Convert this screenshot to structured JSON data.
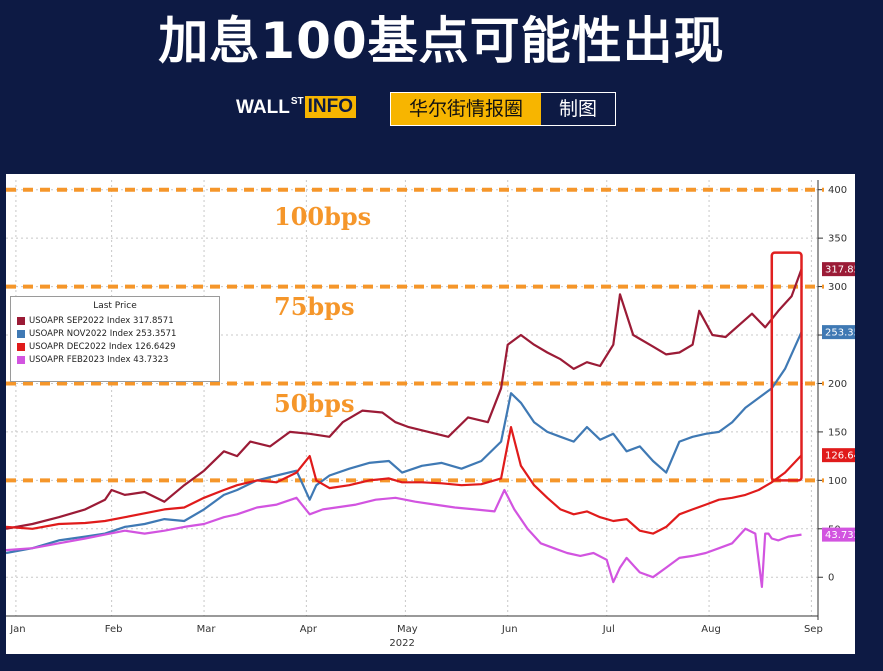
{
  "header": {
    "title": "加息100基点可能性出现",
    "logo": {
      "main": "WALL",
      "sup": "ST",
      "box": "INFO"
    },
    "credit": {
      "circle": "华尔街情报圈",
      "made": "制图"
    }
  },
  "colors": {
    "sep": "#9b1b36",
    "nov": "#3f79b4",
    "dec": "#e01b1b",
    "feb": "#d254e0",
    "band": "#f5962a",
    "highlight": "#e02020"
  },
  "chart_data": {
    "type": "line",
    "title": "",
    "xlabel": "2022",
    "ylabel": "",
    "ylim": [
      -40,
      410
    ],
    "yticks": [
      0,
      50,
      100,
      150,
      200,
      250,
      300,
      350,
      400
    ],
    "xticks": [
      {
        "label": "Jan",
        "day": 3
      },
      {
        "label": "Feb",
        "day": 32
      },
      {
        "label": "Mar",
        "day": 60
      },
      {
        "label": "Apr",
        "day": 91
      },
      {
        "label": "May",
        "day": 121
      },
      {
        "label": "Jun",
        "day": 152
      },
      {
        "label": "Jul",
        "day": 182
      },
      {
        "label": "Aug",
        "day": 213
      },
      {
        "label": "Sep",
        "day": 244
      }
    ],
    "xrange": [
      0,
      246
    ],
    "bands": [
      {
        "value": 400,
        "label": ""
      },
      {
        "value": 300,
        "label": "100bps",
        "label_y": 373
      },
      {
        "value": 200,
        "label": "75bps",
        "label_y": 280
      },
      {
        "value": 100,
        "label": "50bps",
        "label_y": 180
      }
    ],
    "legend_title": "Last Price",
    "highlight_range": [
      232,
      241,
      100,
      335
    ],
    "series": [
      {
        "name": "USOAPR SEP2022 Index",
        "last": "317.8571",
        "color_key": "sep",
        "x": [
          0,
          8,
          16,
          24,
          30,
          32,
          36,
          42,
          48,
          54,
          60,
          66,
          70,
          74,
          80,
          86,
          92,
          98,
          102,
          108,
          114,
          118,
          122,
          128,
          134,
          140,
          146,
          150,
          152,
          156,
          160,
          164,
          168,
          172,
          176,
          180,
          184,
          186,
          190,
          196,
          200,
          204,
          208,
          210,
          214,
          218,
          222,
          226,
          230,
          234,
          238,
          241
        ],
        "y": [
          50,
          55,
          62,
          70,
          80,
          90,
          85,
          88,
          78,
          95,
          110,
          130,
          125,
          140,
          135,
          150,
          148,
          145,
          160,
          172,
          170,
          160,
          155,
          150,
          145,
          165,
          160,
          195,
          240,
          250,
          240,
          232,
          225,
          215,
          222,
          218,
          240,
          292,
          250,
          238,
          230,
          232,
          240,
          275,
          250,
          248,
          260,
          272,
          258,
          275,
          290,
          318
        ]
      },
      {
        "name": "USOAPR NOV2022 Index",
        "last": "253.3571",
        "color_key": "nov",
        "x": [
          0,
          8,
          16,
          24,
          30,
          36,
          42,
          48,
          54,
          60,
          66,
          70,
          76,
          82,
          88,
          92,
          94,
          98,
          104,
          110,
          116,
          120,
          126,
          132,
          138,
          144,
          150,
          153,
          156,
          160,
          164,
          168,
          172,
          176,
          180,
          184,
          188,
          192,
          196,
          200,
          204,
          208,
          212,
          216,
          220,
          224,
          228,
          232,
          236,
          241
        ],
        "y": [
          25,
          30,
          38,
          42,
          45,
          52,
          55,
          60,
          58,
          70,
          85,
          90,
          100,
          105,
          110,
          80,
          95,
          105,
          112,
          118,
          120,
          108,
          115,
          118,
          112,
          120,
          140,
          190,
          180,
          160,
          150,
          145,
          140,
          155,
          142,
          148,
          130,
          135,
          120,
          108,
          140,
          145,
          148,
          150,
          160,
          175,
          185,
          195,
          215,
          253
        ]
      },
      {
        "name": "USOAPR DEC2022 Index",
        "last": "126.6429",
        "color_key": "dec",
        "x": [
          0,
          8,
          16,
          24,
          30,
          36,
          42,
          48,
          54,
          60,
          66,
          70,
          76,
          82,
          88,
          92,
          94,
          98,
          104,
          110,
          116,
          120,
          126,
          132,
          138,
          144,
          150,
          153,
          156,
          160,
          164,
          168,
          172,
          176,
          180,
          184,
          188,
          192,
          196,
          200,
          204,
          208,
          212,
          216,
          220,
          224,
          228,
          232,
          236,
          241
        ],
        "y": [
          52,
          50,
          55,
          56,
          58,
          62,
          66,
          70,
          72,
          82,
          90,
          95,
          100,
          98,
          108,
          125,
          100,
          92,
          95,
          100,
          102,
          98,
          98,
          97,
          95,
          96,
          102,
          155,
          115,
          95,
          82,
          70,
          65,
          68,
          62,
          58,
          60,
          48,
          45,
          52,
          65,
          70,
          75,
          80,
          82,
          85,
          90,
          98,
          108,
          126
        ]
      },
      {
        "name": "USOAPR FEB2023 Index",
        "last": "43.7323",
        "color_key": "feb",
        "x": [
          0,
          8,
          16,
          24,
          30,
          36,
          42,
          48,
          54,
          60,
          66,
          70,
          76,
          82,
          88,
          92,
          96,
          100,
          106,
          112,
          118,
          124,
          130,
          136,
          142,
          148,
          151,
          154,
          158,
          162,
          166,
          170,
          174,
          178,
          182,
          184,
          186,
          188,
          192,
          196,
          200,
          204,
          208,
          212,
          216,
          220,
          224,
          227,
          229,
          230,
          231,
          232,
          234,
          237,
          241
        ],
        "y": [
          28,
          30,
          35,
          40,
          44,
          48,
          45,
          48,
          52,
          55,
          62,
          65,
          72,
          75,
          82,
          65,
          70,
          72,
          75,
          80,
          82,
          78,
          75,
          72,
          70,
          68,
          90,
          70,
          50,
          35,
          30,
          25,
          22,
          25,
          18,
          -5,
          10,
          20,
          5,
          0,
          10,
          20,
          22,
          25,
          30,
          35,
          50,
          45,
          -10,
          45,
          45,
          40,
          38,
          42,
          44
        ]
      }
    ]
  }
}
